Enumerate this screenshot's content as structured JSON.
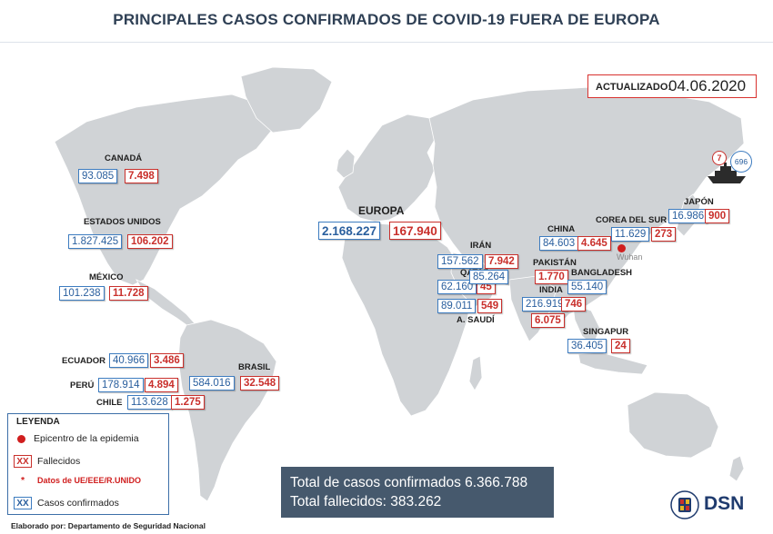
{
  "title": "PRINCIPALES CASOS CONFIRMADOS DE COVID-19 FUERA DE EUROPA",
  "updated": {
    "label": "ACTUALIZADO:",
    "date": "04.06.2020"
  },
  "colors": {
    "confirmed": "#3d7cc0",
    "deaths": "#c9302c",
    "land": "#d0d3d6",
    "totals_bg": "#46596d"
  },
  "regions": [
    {
      "key": "canada",
      "name": "CANADÁ",
      "confirmed": "93.085",
      "deaths": "7.498"
    },
    {
      "key": "usa",
      "name": "ESTADOS UNIDOS",
      "confirmed": "1.827.425",
      "deaths": "106.202"
    },
    {
      "key": "mexico",
      "name": "MÉXICO",
      "confirmed": "101.238",
      "deaths": "11.728"
    },
    {
      "key": "ecuador",
      "name": "ECUADOR",
      "confirmed": "40.966",
      "deaths": "3.486"
    },
    {
      "key": "peru",
      "name": "PERÚ",
      "confirmed": "178.914",
      "deaths": "4.894"
    },
    {
      "key": "chile",
      "name": "CHILE",
      "confirmed": "113.628",
      "deaths": "1.275"
    },
    {
      "key": "brasil",
      "name": "BRASIL",
      "confirmed": "584.016",
      "deaths": "32.548"
    },
    {
      "key": "europa",
      "name": "EUROPA",
      "confirmed": "2.168.227",
      "deaths": "167.940"
    },
    {
      "key": "iran",
      "name": "IRÁN",
      "confirmed": "157.562",
      "deaths": "7.942"
    },
    {
      "key": "qatar",
      "name": "QATAR",
      "confirmed": "62.160",
      "deaths": "45"
    },
    {
      "key": "arabia",
      "name": "A. SAUDÍ",
      "confirmed": "89.011",
      "deaths": "549"
    },
    {
      "key": "pakistan",
      "name": "PAKISTÁN",
      "confirmed": "85.264",
      "deaths": "1.770"
    },
    {
      "key": "india",
      "name": "INDIA",
      "confirmed": "216.919",
      "deaths": "6.075"
    },
    {
      "key": "bangladesh",
      "name": "BANGLADESH",
      "confirmed": "55.140",
      "deaths": "746"
    },
    {
      "key": "china",
      "name": "CHINA",
      "confirmed": "84.603",
      "deaths": "4.645"
    },
    {
      "key": "corea",
      "name": "COREA DEL SUR",
      "confirmed": "11.629",
      "deaths": "273"
    },
    {
      "key": "japon",
      "name": "JAPÓN",
      "confirmed": "16.986",
      "deaths": "900"
    },
    {
      "key": "singapur",
      "name": "SINGAPUR",
      "confirmed": "36.405",
      "deaths": "24"
    }
  ],
  "epicenter": {
    "label": "Wuhan"
  },
  "cruise_ship": {
    "deaths": "7",
    "confirmed": "696"
  },
  "legend": {
    "title": "LEYENDA",
    "epicenter": "Epicentro de la epidemia",
    "xx": "XX",
    "deaths": "Fallecidos",
    "star": "*",
    "eu_data": "Datos de UE/EEE/R.UNIDO",
    "confirmed": "Casos confirmados"
  },
  "totals": {
    "confirmed": "Total de casos confirmados 6.366.788",
    "deaths": "Total fallecidos: 383.262"
  },
  "footer": "Elaborado por: Departamento de Seguridad Nacional",
  "logo": {
    "text": "DSN"
  }
}
